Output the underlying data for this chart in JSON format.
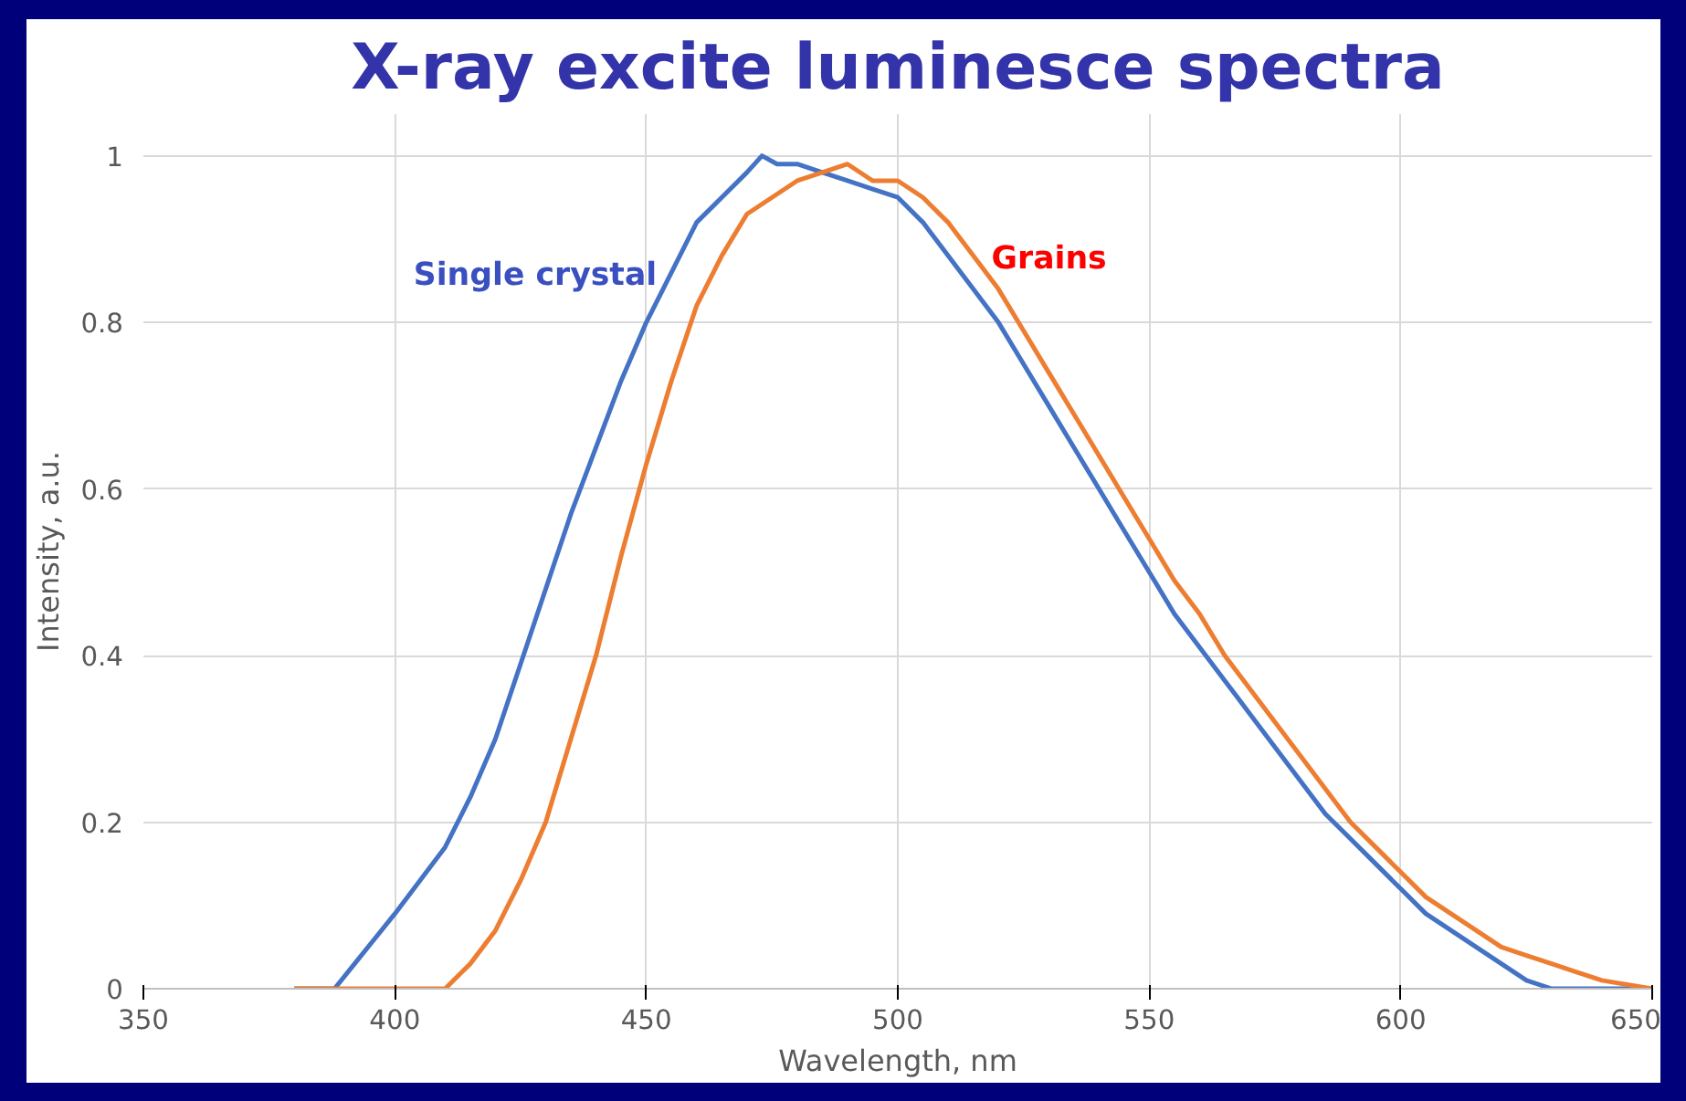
{
  "chart_data": {
    "type": "line",
    "title": "X-ray excite luminesce spectra",
    "xlabel": "Wavelength, nm",
    "ylabel": "Intensity, a.u.",
    "xlim": [
      350,
      650
    ],
    "xticks": [
      350,
      400,
      450,
      500,
      550,
      600,
      650
    ],
    "ylim": [
      0,
      1.05
    ],
    "yticks": [
      0,
      0.2,
      0.4,
      0.6,
      0.8,
      1
    ],
    "grid": true,
    "series": [
      {
        "name": "Single crystal",
        "color": "#4472c4",
        "x": [
          380,
          388,
          392,
          396,
          400,
          405,
          410,
          415,
          420,
          425,
          430,
          435,
          440,
          445,
          450,
          455,
          460,
          465,
          470,
          473,
          476,
          480,
          485,
          490,
          495,
          500,
          505,
          510,
          515,
          520,
          525,
          530,
          535,
          540,
          545,
          550,
          555,
          560,
          565,
          570,
          575,
          580,
          585,
          590,
          595,
          600,
          605,
          610,
          615,
          620,
          625,
          630,
          640,
          650
        ],
        "values": [
          0,
          0,
          0.03,
          0.06,
          0.09,
          0.13,
          0.17,
          0.23,
          0.3,
          0.39,
          0.48,
          0.57,
          0.65,
          0.73,
          0.8,
          0.86,
          0.92,
          0.95,
          0.98,
          1.0,
          0.99,
          0.99,
          0.98,
          0.97,
          0.96,
          0.95,
          0.92,
          0.88,
          0.84,
          0.8,
          0.75,
          0.7,
          0.65,
          0.6,
          0.55,
          0.5,
          0.45,
          0.41,
          0.37,
          0.33,
          0.29,
          0.25,
          0.21,
          0.18,
          0.15,
          0.12,
          0.09,
          0.07,
          0.05,
          0.03,
          0.01,
          0,
          0,
          0
        ]
      },
      {
        "name": "Grains",
        "color": "#ed7d31",
        "x": [
          380,
          410,
          415,
          420,
          425,
          430,
          435,
          440,
          445,
          450,
          455,
          460,
          465,
          470,
          475,
          480,
          485,
          490,
          495,
          500,
          505,
          510,
          515,
          520,
          525,
          530,
          535,
          540,
          545,
          550,
          555,
          560,
          565,
          570,
          575,
          580,
          585,
          590,
          595,
          600,
          605,
          610,
          615,
          620,
          625,
          630,
          635,
          640,
          645,
          650
        ],
        "values": [
          0,
          0,
          0.03,
          0.07,
          0.13,
          0.2,
          0.3,
          0.4,
          0.52,
          0.63,
          0.73,
          0.82,
          0.88,
          0.93,
          0.95,
          0.97,
          0.98,
          0.99,
          0.97,
          0.97,
          0.95,
          0.92,
          0.88,
          0.84,
          0.79,
          0.74,
          0.69,
          0.64,
          0.59,
          0.54,
          0.49,
          0.45,
          0.4,
          0.36,
          0.32,
          0.28,
          0.24,
          0.2,
          0.17,
          0.14,
          0.11,
          0.09,
          0.07,
          0.05,
          0.04,
          0.03,
          0.02,
          0.01,
          0.005,
          0
        ]
      }
    ]
  }
}
